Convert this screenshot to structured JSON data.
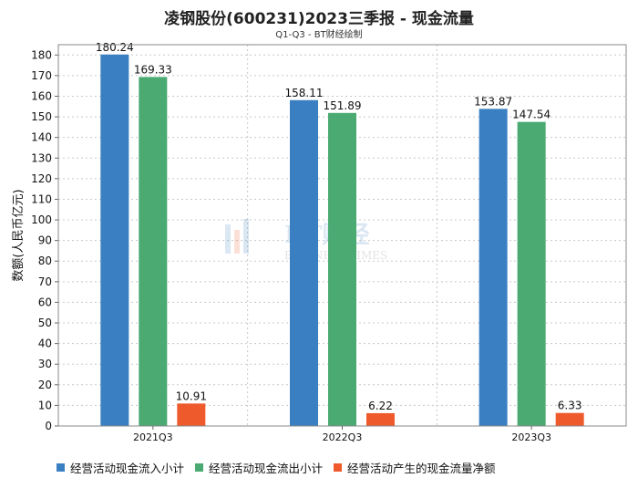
{
  "title": "凌钢股份(600231)2023三季报 - 现金流量",
  "subtitle": "Q1-Q3 - BT财经绘制",
  "watermark": {
    "brand": "BT财经",
    "sub": "BUSINESS TIMES"
  },
  "chart_data": {
    "type": "bar",
    "categories": [
      "2021Q3",
      "2022Q3",
      "2023Q3"
    ],
    "series": [
      {
        "name": "经营活动现金流入小计",
        "color": "#3a7fc1",
        "values": [
          180.24,
          158.11,
          153.87
        ]
      },
      {
        "name": "经营活动现金流出小计",
        "color": "#4aaa72",
        "values": [
          169.33,
          151.89,
          147.54
        ]
      },
      {
        "name": "经营活动产生的现金流量净额",
        "color": "#ee5a2c",
        "values": [
          10.91,
          6.22,
          6.33
        ]
      }
    ],
    "ylabel": "数额(人民币亿元)",
    "ylim": [
      0,
      185
    ],
    "yticks": [
      0,
      10,
      20,
      30,
      40,
      50,
      60,
      70,
      80,
      90,
      100,
      110,
      120,
      130,
      140,
      150,
      160,
      170,
      180
    ],
    "grid": true,
    "legend_position": "bottom"
  }
}
